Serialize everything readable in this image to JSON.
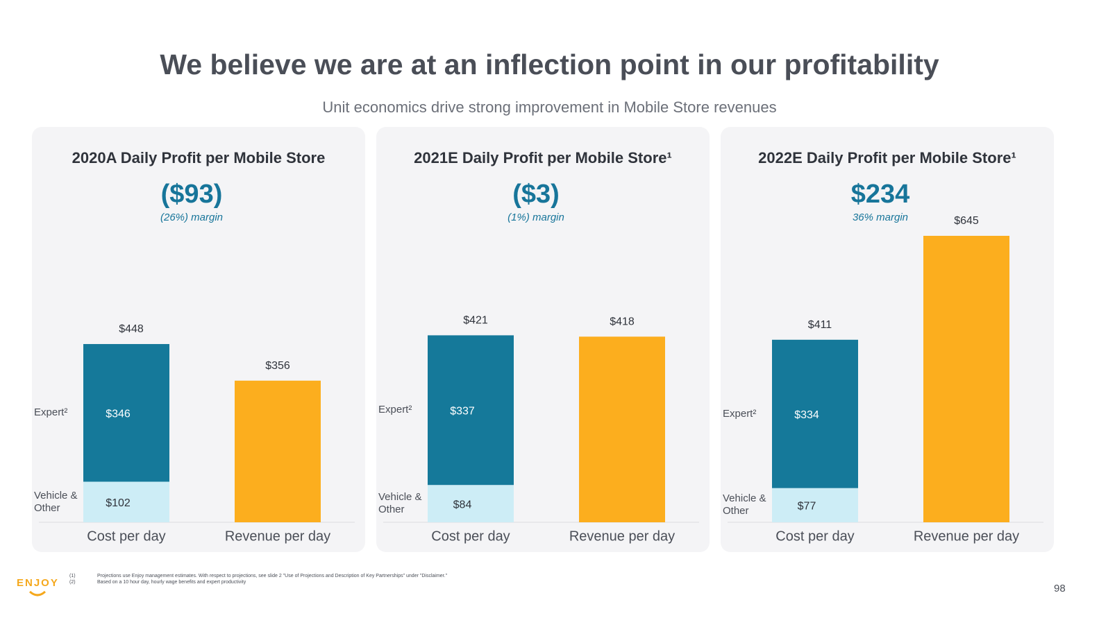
{
  "header": {
    "title": "We believe we are at an inflection point in our profitability",
    "subtitle": "Unit economics drive strong improvement in Mobile Store revenues"
  },
  "chart_data": [
    {
      "type": "bar",
      "stacked": true,
      "title": "2020A Daily Profit per Mobile Store",
      "headline": "($93)",
      "margin": "(26%) margin",
      "categories": [
        "Cost per day",
        "Revenue per day"
      ],
      "ylim": [
        0,
        720
      ],
      "series": [
        {
          "name": "Vehicle & Other",
          "color": "#cdedf6",
          "values": [
            102,
            null
          ],
          "value_labels": [
            "$102",
            null
          ]
        },
        {
          "name": "Expert²",
          "color": "#15799a",
          "values": [
            346,
            null
          ],
          "value_labels": [
            "$346",
            null
          ]
        },
        {
          "color": "#fcae1e",
          "values": [
            null,
            356
          ]
        }
      ],
      "totals": [
        448,
        356
      ],
      "total_labels": [
        "$448",
        "$356"
      ]
    },
    {
      "type": "bar",
      "stacked": true,
      "title": "2021E Daily Profit per Mobile Store¹",
      "headline": "($3)",
      "margin": "(1%) margin",
      "categories": [
        "Cost per day",
        "Revenue per day"
      ],
      "ylim": [
        0,
        645
      ],
      "series": [
        {
          "name": "Vehicle & Other",
          "color": "#cdedf6",
          "values": [
            84,
            null
          ],
          "value_labels": [
            "$84",
            null
          ]
        },
        {
          "name": "Expert²",
          "color": "#15799a",
          "values": [
            337,
            null
          ],
          "value_labels": [
            "$337",
            null
          ]
        },
        {
          "color": "#fcae1e",
          "values": [
            null,
            418
          ]
        }
      ],
      "totals": [
        421,
        418
      ],
      "total_labels": [
        "$421",
        "$418"
      ]
    },
    {
      "type": "bar",
      "stacked": true,
      "title": "2022E Daily Profit per Mobile Store¹",
      "headline": "$234",
      "margin": "36% margin",
      "categories": [
        "Cost per day",
        "Revenue per day"
      ],
      "ylim": [
        0,
        645
      ],
      "series": [
        {
          "name": "Vehicle & Other",
          "color": "#cdedf6",
          "values": [
            77,
            null
          ],
          "value_labels": [
            "$77",
            null
          ]
        },
        {
          "name": "Expert²",
          "color": "#15799a",
          "values": [
            334,
            null
          ],
          "value_labels": [
            "$334",
            null
          ]
        },
        {
          "color": "#fcae1e",
          "values": [
            null,
            645
          ]
        }
      ],
      "totals": [
        411,
        645
      ],
      "total_labels": [
        "$411",
        "$645"
      ]
    }
  ],
  "footer": {
    "logo": "ENJOY",
    "notes": [
      {
        "marker": "(1)",
        "text": "Projections use Enjoy management estimates. With respect to projections, see slide 2 \"Use of Projections and Description of Key Partnerships\" under \"Disclaimer.\""
      },
      {
        "marker": "(2)",
        "text": "Based on a 10 hour day, hourly wage benefits and expert productivity"
      }
    ],
    "page": "98"
  }
}
